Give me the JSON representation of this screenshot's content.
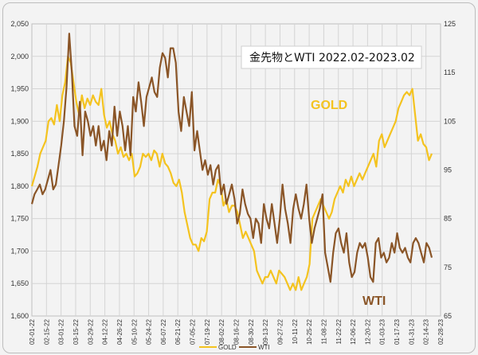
{
  "chart_data": {
    "type": "line",
    "title": "金先物とWTI  2022.02-2023.02",
    "x_ticks": [
      "02-01-22",
      "02-15-22",
      "03-01-22",
      "03-15-22",
      "03-29-22",
      "04-12-22",
      "04-26-22",
      "05-10-22",
      "05-24-22",
      "06-07-22",
      "06-21-22",
      "07-05-22",
      "07-19-22",
      "08-02-22",
      "08-16-22",
      "08-30-22",
      "09-13-22",
      "09-27-22",
      "10-11-22",
      "10-25-22",
      "11-08-22",
      "11-22-22",
      "12-06-22",
      "12-20-22",
      "01-03-23",
      "01-17-23",
      "01-31-23",
      "02-14-23",
      "02-28-23"
    ],
    "y_left": {
      "min": 1600,
      "max": 2050,
      "ticks": [
        "1,600",
        "1,650",
        "1,700",
        "1,750",
        "1,800",
        "1,850",
        "1,900",
        "1,950",
        "2,000",
        "2,050"
      ]
    },
    "y_right": {
      "min": 65,
      "max": 125,
      "ticks": [
        "65",
        "75",
        "85",
        "95",
        "105",
        "115",
        "125"
      ]
    },
    "gridlines": true,
    "series": [
      {
        "name": "GOLD",
        "axis": "left",
        "color": "#f4c31f",
        "label": "GOLD",
        "values": [
          1800,
          1815,
          1830,
          1850,
          1860,
          1870,
          1900,
          1905,
          1895,
          1925,
          1900,
          1940,
          1960,
          2000,
          1990,
          1960,
          1930,
          1910,
          1940,
          1920,
          1935,
          1925,
          1940,
          1930,
          1925,
          1950,
          1910,
          1890,
          1900,
          1880,
          1870,
          1850,
          1860,
          1845,
          1850,
          1840,
          1850,
          1815,
          1820,
          1830,
          1850,
          1845,
          1850,
          1840,
          1855,
          1850,
          1830,
          1850,
          1835,
          1830,
          1820,
          1805,
          1800,
          1810,
          1790,
          1760,
          1740,
          1720,
          1710,
          1710,
          1700,
          1720,
          1715,
          1730,
          1780,
          1790,
          1790,
          1810,
          1800,
          1770,
          1780,
          1760,
          1770,
          1770,
          1760,
          1740,
          1720,
          1730,
          1720,
          1710,
          1700,
          1670,
          1660,
          1650,
          1660,
          1660,
          1670,
          1660,
          1650,
          1670,
          1665,
          1660,
          1650,
          1640,
          1650,
          1640,
          1660,
          1640,
          1650,
          1660,
          1680,
          1750,
          1760,
          1770,
          1780,
          1770,
          1760,
          1750,
          1760,
          1780,
          1790,
          1800,
          1790,
          1810,
          1800,
          1815,
          1800,
          1810,
          1820,
          1810,
          1820,
          1830,
          1840,
          1850,
          1830,
          1870,
          1880,
          1860,
          1870,
          1880,
          1890,
          1900,
          1920,
          1930,
          1940,
          1945,
          1940,
          1950,
          1910,
          1870,
          1880,
          1865,
          1860,
          1840,
          1850
        ],
        "start_col": 0
      },
      {
        "name": "WTI",
        "axis": "right",
        "color": "#8a5527",
        "label": "WTI",
        "values": [
          88,
          90,
          91,
          92,
          90,
          91,
          93,
          95,
          91,
          92,
          96,
          100,
          105,
          112,
          123,
          115,
          104,
          102,
          109,
          98,
          107,
          105,
          102,
          104,
          100,
          104,
          99,
          101,
          97,
          103,
          100,
          108,
          102,
          107,
          104,
          99,
          104,
          98,
          110,
          107,
          113,
          109,
          104,
          110,
          112,
          114,
          111,
          110,
          116,
          119,
          118,
          114,
          120,
          120,
          117,
          107,
          103,
          110,
          107,
          104,
          111,
          99,
          103,
          99,
          95,
          97,
          94,
          96,
          92,
          95,
          96,
          90,
          92,
          88,
          90,
          92,
          89,
          84,
          86,
          91,
          88,
          86,
          85,
          81,
          85,
          84,
          80,
          88,
          85,
          83,
          88,
          84,
          80,
          85,
          92,
          87,
          84,
          80,
          87,
          90,
          87,
          85,
          88,
          92,
          85,
          80,
          83,
          85,
          87,
          90,
          78,
          75,
          72,
          78,
          82,
          83,
          80,
          78,
          82,
          76,
          73,
          74,
          78,
          80,
          79,
          80,
          77,
          73,
          72,
          80,
          81,
          77,
          78,
          76,
          77,
          80,
          78,
          82,
          79,
          78,
          79,
          77,
          76,
          80,
          81,
          80,
          78,
          76,
          80,
          79,
          77
        ],
        "start_col": 0
      }
    ],
    "legend": {
      "placement": "bottom",
      "entries": [
        {
          "name": "GOLD",
          "color": "#f4c31f"
        },
        {
          "name": "WTI",
          "color": "#8a5527"
        }
      ]
    }
  }
}
